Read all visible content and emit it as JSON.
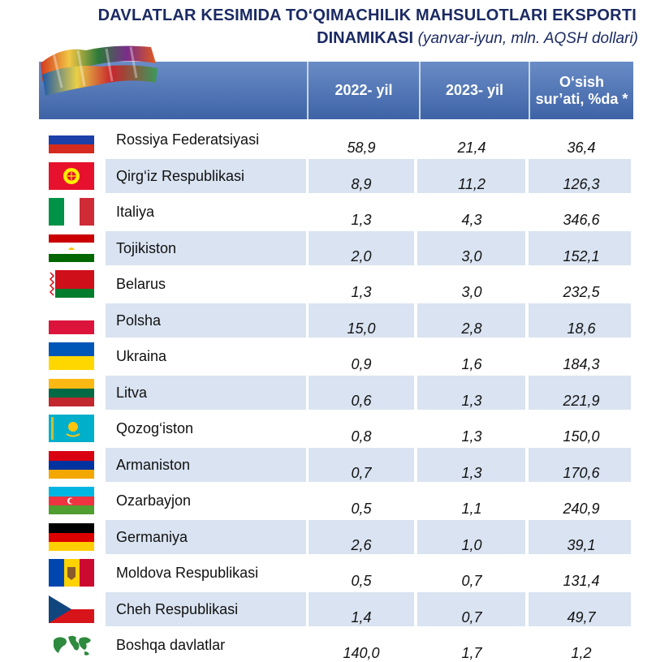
{
  "title": {
    "line1": "DAVLATLAR KESIMIDA TO‘QIMACHILIK MAHSULOTLARI EKSPORTI",
    "line2_bold": "DINAMIKASI",
    "line2_italic": "(yanvar-iyun, mln. AQSH dollari)"
  },
  "header": {
    "col_2022": "2022- yil",
    "col_2023": "2023- yil",
    "col_growth": "O‘sish sur’ati, %da *"
  },
  "chart_data": {
    "type": "table",
    "title": "DAVLATLAR KESIMIDA TO‘QIMACHILIK MAHSULOTLARI EKSPORTI DINAMIKASI (yanvar-iyun, mln. AQSH dollari)",
    "columns": [
      "2022- yil",
      "2023- yil",
      "O‘sish sur’ati, %da *"
    ],
    "rows": [
      {
        "country": "Rossiya Federatsiyasi",
        "flag": "russia-flag",
        "y2022": "58,9",
        "y2023": "21,4",
        "growth": "36,4"
      },
      {
        "country": "Qirg‘iz Respublikasi",
        "flag": "kyrgyzstan-flag",
        "y2022": "8,9",
        "y2023": "11,2",
        "growth": "126,3"
      },
      {
        "country": "Italiya",
        "flag": "italy-flag",
        "y2022": "1,3",
        "y2023": "4,3",
        "growth": "346,6"
      },
      {
        "country": "Tojikiston",
        "flag": "tajikistan-flag",
        "y2022": "2,0",
        "y2023": "3,0",
        "growth": "152,1"
      },
      {
        "country": "Belarus",
        "flag": "belarus-flag",
        "y2022": "1,3",
        "y2023": "3,0",
        "growth": "232,5"
      },
      {
        "country": "Polsha",
        "flag": "poland-flag",
        "y2022": "15,0",
        "y2023": "2,8",
        "growth": "18,6"
      },
      {
        "country": "Ukraina",
        "flag": "ukraine-flag",
        "y2022": "0,9",
        "y2023": "1,6",
        "growth": "184,3"
      },
      {
        "country": "Litva",
        "flag": "lithuania-flag",
        "y2022": "0,6",
        "y2023": "1,3",
        "growth": "221,9"
      },
      {
        "country": "Qozog‘iston",
        "flag": "kazakhstan-flag",
        "y2022": "0,8",
        "y2023": "1,3",
        "growth": "150,0"
      },
      {
        "country": "Armaniston",
        "flag": "armenia-flag",
        "y2022": "0,7",
        "y2023": "1,3",
        "growth": "170,6"
      },
      {
        "country": "Ozarbayjon",
        "flag": "azerbaijan-flag",
        "y2022": "0,5",
        "y2023": "1,1",
        "growth": "240,9"
      },
      {
        "country": "Germaniya",
        "flag": "germany-flag",
        "y2022": "2,6",
        "y2023": "1,0",
        "growth": "39,1"
      },
      {
        "country": "Moldova Respublikasi",
        "flag": "moldova-flag",
        "y2022": "0,5",
        "y2023": "0,7",
        "growth": "131,4"
      },
      {
        "country": "Cheh Respublikasi",
        "flag": "czech-flag",
        "y2022": "1,4",
        "y2023": "0,7",
        "growth": "49,7"
      },
      {
        "country": "Boshqa davlatlar",
        "flag": "world-map-icon",
        "y2022": "140,0",
        "y2023": "1,7",
        "growth": "1,2"
      }
    ]
  },
  "colors": {
    "title": "#1b2a63",
    "header_top": "#6a8cc6",
    "header_bottom": "#3e63a6",
    "band": "#d9e3f1"
  }
}
